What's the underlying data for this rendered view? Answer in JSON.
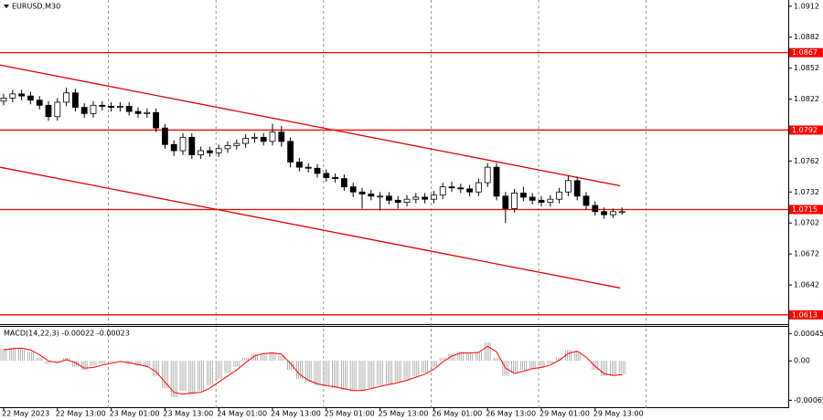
{
  "chart_data": [
    {
      "type": "candlestick",
      "title": "EURUSD,M30",
      "categories": [
        "22 May 2023",
        null,
        null,
        null,
        null,
        null,
        "22 May 13:00",
        null,
        null,
        null,
        null,
        null,
        "23 May 01:00",
        null,
        null,
        null,
        null,
        null,
        "23 May 13:00",
        null,
        null,
        null,
        null,
        null,
        "24 May 01:00",
        null,
        null,
        null,
        null,
        null,
        "24 May 13:00",
        null,
        null,
        null,
        null,
        null,
        "25 May 01:00",
        null,
        null,
        null,
        null,
        null,
        "25 May 13:00",
        null,
        null,
        null,
        null,
        null,
        "26 May 01:00",
        null,
        null,
        null,
        null,
        null,
        "26 May 13:00",
        null,
        null,
        null,
        null,
        null,
        "29 May 01:00",
        null,
        null,
        null,
        null,
        null,
        "29 May 13:00",
        null,
        null,
        null
      ],
      "open": [
        1.082,
        1.0823,
        1.0827,
        1.0825,
        1.0821,
        1.0816,
        1.0805,
        1.0819,
        1.0828,
        1.0814,
        1.0808,
        1.0816,
        1.0815,
        1.0814,
        1.0815,
        1.081,
        1.0808,
        1.0809,
        1.0794,
        1.0778,
        1.0772,
        1.0785,
        1.0768,
        1.0772,
        1.077,
        1.0774,
        1.0777,
        1.0779,
        1.0784,
        1.0785,
        1.0781,
        1.079,
        1.0781,
        1.0761,
        1.0756,
        1.0755,
        1.075,
        1.0746,
        1.0745,
        1.0737,
        1.0732,
        1.073,
        1.0728,
        1.0728,
        1.0724,
        1.0722,
        1.0725,
        1.0727,
        1.0725,
        1.0729,
        1.0737,
        1.0736,
        1.0735,
        1.0732,
        1.0741,
        1.0756,
        1.0728,
        1.0716,
        1.0731,
        1.0727,
        1.0724,
        1.0722,
        1.0725,
        1.0732,
        1.0743,
        1.0728,
        1.0719,
        1.0713,
        1.071,
        1.0713
      ],
      "high": [
        1.0827,
        1.0831,
        1.0831,
        1.0829,
        1.0825,
        1.082,
        1.0823,
        1.0833,
        1.0832,
        1.0818,
        1.082,
        1.082,
        1.0819,
        1.0819,
        1.0819,
        1.0814,
        1.0813,
        1.0813,
        1.0798,
        1.0782,
        1.0789,
        1.0789,
        1.0776,
        1.0776,
        1.0778,
        1.0781,
        1.0783,
        1.0788,
        1.0789,
        1.0789,
        1.0798,
        1.0796,
        1.0785,
        1.0765,
        1.076,
        1.0759,
        1.0754,
        1.075,
        1.0749,
        1.0741,
        1.0736,
        1.0734,
        1.0732,
        1.0732,
        1.0728,
        1.0729,
        1.0731,
        1.0731,
        1.0733,
        1.0741,
        1.0742,
        1.074,
        1.0739,
        1.0745,
        1.076,
        1.076,
        1.0732,
        1.0735,
        1.0737,
        1.0731,
        1.0728,
        1.0729,
        1.0736,
        1.0748,
        1.0747,
        1.0732,
        1.0723,
        1.0717,
        1.0716,
        1.0717
      ],
      "low": [
        1.0816,
        1.0819,
        1.0821,
        1.0817,
        1.0812,
        1.0801,
        1.0801,
        1.0815,
        1.081,
        1.0804,
        1.0804,
        1.0811,
        1.081,
        1.081,
        1.0806,
        1.0804,
        1.0804,
        1.079,
        1.0774,
        1.0767,
        1.0768,
        1.0764,
        1.0764,
        1.0766,
        1.0766,
        1.077,
        1.0773,
        1.0775,
        1.078,
        1.0777,
        1.0777,
        1.0776,
        1.0756,
        1.0752,
        1.0751,
        1.0746,
        1.0742,
        1.0741,
        1.0733,
        1.0727,
        1.0716,
        1.0724,
        1.0714,
        1.072,
        1.0716,
        1.0718,
        1.0721,
        1.0721,
        1.0721,
        1.0725,
        1.0732,
        1.0731,
        1.0728,
        1.0728,
        1.0737,
        1.0724,
        1.0702,
        1.0712,
        1.0723,
        1.072,
        1.0718,
        1.0718,
        1.0721,
        1.0728,
        1.0724,
        1.0715,
        1.0709,
        1.0706,
        1.0707,
        1.071
      ],
      "close": [
        1.0823,
        1.0827,
        1.0825,
        1.0821,
        1.0816,
        1.0805,
        1.0819,
        1.0828,
        1.0814,
        1.0808,
        1.0816,
        1.0815,
        1.0814,
        1.0815,
        1.081,
        1.0808,
        1.0809,
        1.0794,
        1.0778,
        1.0772,
        1.0785,
        1.0768,
        1.0772,
        1.077,
        1.0774,
        1.0777,
        1.0779,
        1.0784,
        1.0785,
        1.0781,
        1.079,
        1.0781,
        1.0761,
        1.0756,
        1.0755,
        1.075,
        1.0746,
        1.0745,
        1.0737,
        1.0732,
        1.073,
        1.0728,
        1.0728,
        1.0724,
        1.0722,
        1.0725,
        1.0727,
        1.0725,
        1.0729,
        1.0737,
        1.0736,
        1.0735,
        1.0732,
        1.0741,
        1.0756,
        1.0728,
        1.0716,
        1.0731,
        1.0727,
        1.0724,
        1.0722,
        1.0725,
        1.0732,
        1.0743,
        1.0728,
        1.0719,
        1.0713,
        1.071,
        1.0713,
        1.0713
      ],
      "ylim": [
        1.0604,
        1.0918
      ],
      "yticks": [
        1.0912,
        1.0882,
        1.0852,
        1.0822,
        1.0762,
        1.0732,
        1.0702,
        1.0672,
        1.0642
      ],
      "levels": [
        1.0867,
        1.0792,
        1.0715,
        1.0613
      ],
      "level_color": "#ff0000",
      "channel": {
        "upper": [
          1.0855,
          1.0738
        ],
        "lower": [
          1.0756,
          1.0639
        ],
        "color": "#e00000"
      },
      "grid": true
    },
    {
      "type": "macd",
      "title": "MACD(14,22,3) -0.00022 -0.00023",
      "histogram": [
        0.0002,
        0.00022,
        0.0002,
        0.00015,
        5e-05,
        -5e-05,
        -2e-05,
        5e-05,
        -0.0001,
        -0.00015,
        -8e-05,
        -5e-05,
        -2e-05,
        0.0,
        -5e-05,
        -8e-05,
        -0.0001,
        -0.00025,
        -0.00045,
        -0.0006,
        -0.0005,
        -0.00055,
        -0.0005,
        -0.0004,
        -0.0003,
        -0.0002,
        -0.0001,
        5e-05,
        0.00012,
        0.00012,
        0.00015,
        8e-05,
        -0.00015,
        -0.0003,
        -0.00035,
        -0.0004,
        -0.00042,
        -0.00045,
        -0.00048,
        -0.0005,
        -0.00048,
        -0.00045,
        -0.0004,
        -0.00038,
        -0.00035,
        -0.0003,
        -0.00025,
        -0.0002,
        -0.0001,
        5e-05,
        0.00012,
        0.00015,
        0.00012,
        0.00015,
        0.0003,
        5e-05,
        -0.00025,
        -0.0002,
        -0.00015,
        -0.00012,
        -0.0001,
        -5e-05,
        5e-05,
        0.00018,
        0.00015,
        0.0,
        -0.00015,
        -0.00025,
        -0.00025,
        -0.00022
      ],
      "signal": [
        0.00018,
        0.0002,
        0.00021,
        0.00018,
        0.0001,
        0.0,
        -3e-05,
        2e-05,
        -3e-05,
        -0.00012,
        -0.00011,
        -7e-05,
        -4e-05,
        -1e-05,
        -3e-05,
        -6e-05,
        -9e-05,
        -0.00018,
        -0.00035,
        -0.00052,
        -0.00055,
        -0.00053,
        -0.00052,
        -0.00045,
        -0.00035,
        -0.00025,
        -0.00015,
        -3e-05,
        8e-05,
        0.00012,
        0.00013,
        0.00011,
        -4e-05,
        -0.00022,
        -0.00032,
        -0.00038,
        -0.00041,
        -0.00043,
        -0.00046,
        -0.00049,
        -0.00049,
        -0.00046,
        -0.00042,
        -0.00039,
        -0.00036,
        -0.00032,
        -0.00027,
        -0.00022,
        -0.00014,
        -2e-05,
        8e-05,
        0.00013,
        0.00013,
        0.00014,
        0.00024,
        0.00015,
        -0.00012,
        -0.00021,
        -0.00017,
        -0.00013,
        -0.00011,
        -7e-05,
        1e-05,
        0.00012,
        0.00016,
        6e-05,
        -9e-05,
        -0.00021,
        -0.00024,
        -0.00023
      ],
      "histogram_color": "#a0a0a0",
      "signal_color": "#ff0000",
      "ylim": [
        -0.00078,
        0.00056
      ],
      "yticks": [
        0.00045,
        {
          "value": 0,
          "label": "0.00"
        },
        -0.00065
      ]
    }
  ]
}
